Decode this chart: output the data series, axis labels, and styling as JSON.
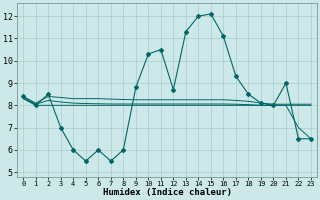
{
  "xlabel": "Humidex (Indice chaleur)",
  "bg_color": "#cde8e8",
  "grid_color": "#aacccc",
  "line_color": "#006666",
  "xlim": [
    -0.5,
    23.5
  ],
  "ylim": [
    4.8,
    12.6
  ],
  "yticks": [
    5,
    6,
    7,
    8,
    9,
    10,
    11,
    12
  ],
  "xticks": [
    0,
    1,
    2,
    3,
    4,
    5,
    6,
    7,
    8,
    9,
    10,
    11,
    12,
    13,
    14,
    15,
    16,
    17,
    18,
    19,
    20,
    21,
    22,
    23
  ],
  "main_line": [
    8.4,
    8.0,
    8.5,
    7.0,
    6.0,
    5.5,
    6.0,
    5.5,
    6.0,
    8.8,
    10.3,
    10.5,
    8.7,
    11.3,
    12.0,
    12.1,
    11.1,
    9.3,
    8.5,
    8.1,
    8.0,
    9.0,
    6.5,
    6.5
  ],
  "flat_line1": [
    8.4,
    8.1,
    8.4,
    8.35,
    8.3,
    8.3,
    8.3,
    8.28,
    8.26,
    8.25,
    8.25,
    8.25,
    8.25,
    8.25,
    8.25,
    8.25,
    8.25,
    8.22,
    8.18,
    8.1,
    8.05,
    8.05,
    8.05,
    8.05
  ],
  "flat_line2": [
    8.35,
    8.05,
    8.22,
    8.15,
    8.1,
    8.08,
    8.07,
    8.06,
    8.06,
    8.06,
    8.06,
    8.06,
    8.06,
    8.06,
    8.06,
    8.06,
    8.06,
    8.05,
    8.03,
    8.0,
    8.0,
    8.0,
    7.0,
    6.5
  ],
  "flat_line3": [
    8.3,
    8.0,
    8.0,
    8.0,
    8.0,
    8.0,
    8.0,
    8.0,
    8.0,
    8.0,
    8.0,
    8.0,
    8.0,
    8.0,
    8.0,
    8.0,
    8.0,
    8.0,
    8.0,
    8.0,
    8.0,
    8.0,
    8.0,
    8.0
  ]
}
